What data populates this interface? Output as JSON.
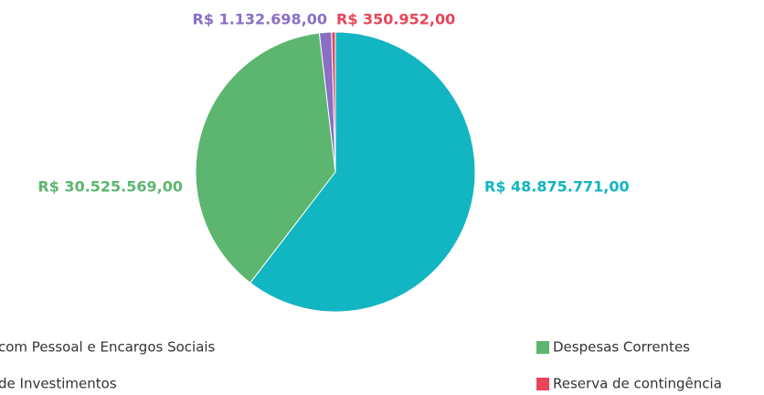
{
  "chart_data": {
    "type": "pie",
    "categories": [
      "com Pessoal e Encargos Sociais",
      "Despesas Correntes",
      "de Investimentos",
      "Reserva de contingência"
    ],
    "values": [
      48875771,
      30525569,
      1132698,
      350952
    ],
    "value_labels": [
      "R$ 48.875.771,00",
      "R$ 30.525.569,00",
      "R$ 1.132.698,00",
      "R$ 350.952,00"
    ],
    "colors": [
      "#12b5c2",
      "#5cb66f",
      "#8a6fc4",
      "#e8455a"
    ]
  }
}
